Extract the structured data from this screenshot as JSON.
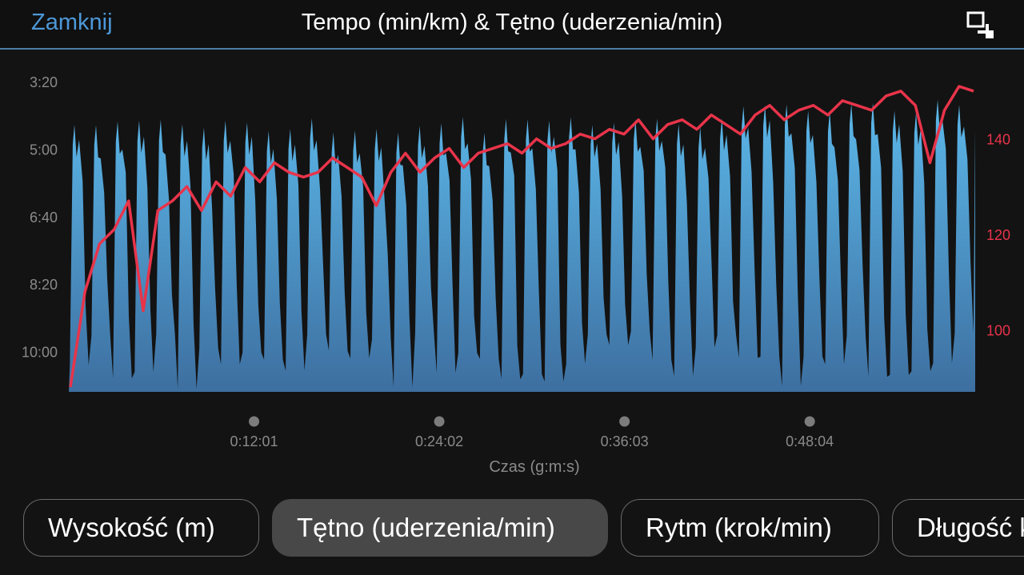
{
  "header": {
    "close_label": "Zamknij",
    "title": "Tempo (min/km) & Tętno (uderzenia/min)",
    "expand_icon": "expand-icon"
  },
  "colors": {
    "accent": "#4d98d8",
    "pace_fill_top": "#5cb8ea",
    "pace_fill_bottom": "#3d6fa0",
    "heart_rate": "#e8344a",
    "tick_text": "#8a8a8a"
  },
  "chart_data": {
    "type": "area",
    "xlabel": "Czas (g:m:s)",
    "x_ticks": [
      "0:12:01",
      "0:24:02",
      "0:36:03",
      "0:48:04"
    ],
    "xlim_minutes": [
      0,
      58.8
    ],
    "series": [
      {
        "axis": "left",
        "style": "area",
        "y_tick_labels": [
          "3:20",
          "5:00",
          "6:40",
          "8:20",
          "10:00"
        ],
        "ylim_min_per_km": [
          3.33,
          11.0
        ],
        "interval_count": 42,
        "fast_pace_min_per_km": [
          4.2,
          4.6
        ],
        "slow_pace_min_per_km": [
          9.5,
          11.0
        ]
      },
      {
        "axis": "right",
        "style": "line",
        "y_tick_labels": [
          "140",
          "120",
          "100"
        ],
        "ylim_bpm": [
          87,
          152
        ],
        "values_bpm": [
          88,
          108,
          118,
          121,
          127,
          104,
          125,
          127,
          130,
          125,
          131,
          128,
          134,
          131,
          135,
          133,
          132,
          133,
          136,
          134,
          132,
          126,
          133,
          137,
          133,
          136,
          138,
          134,
          137,
          138,
          139,
          137,
          140,
          138,
          139,
          141,
          140,
          142,
          141,
          144,
          140,
          143,
          144,
          142,
          145,
          143,
          141,
          145,
          147,
          144,
          146,
          147,
          145,
          148,
          147,
          146,
          149,
          150,
          147,
          135,
          146,
          151,
          150
        ]
      }
    ]
  },
  "tabs": [
    {
      "label": "Wysokość (m)"
    },
    {
      "label": "Tętno (uderzenia/min)"
    },
    {
      "label": "Rytm (krok/min)"
    },
    {
      "label": "Długość kroku (m)"
    }
  ]
}
